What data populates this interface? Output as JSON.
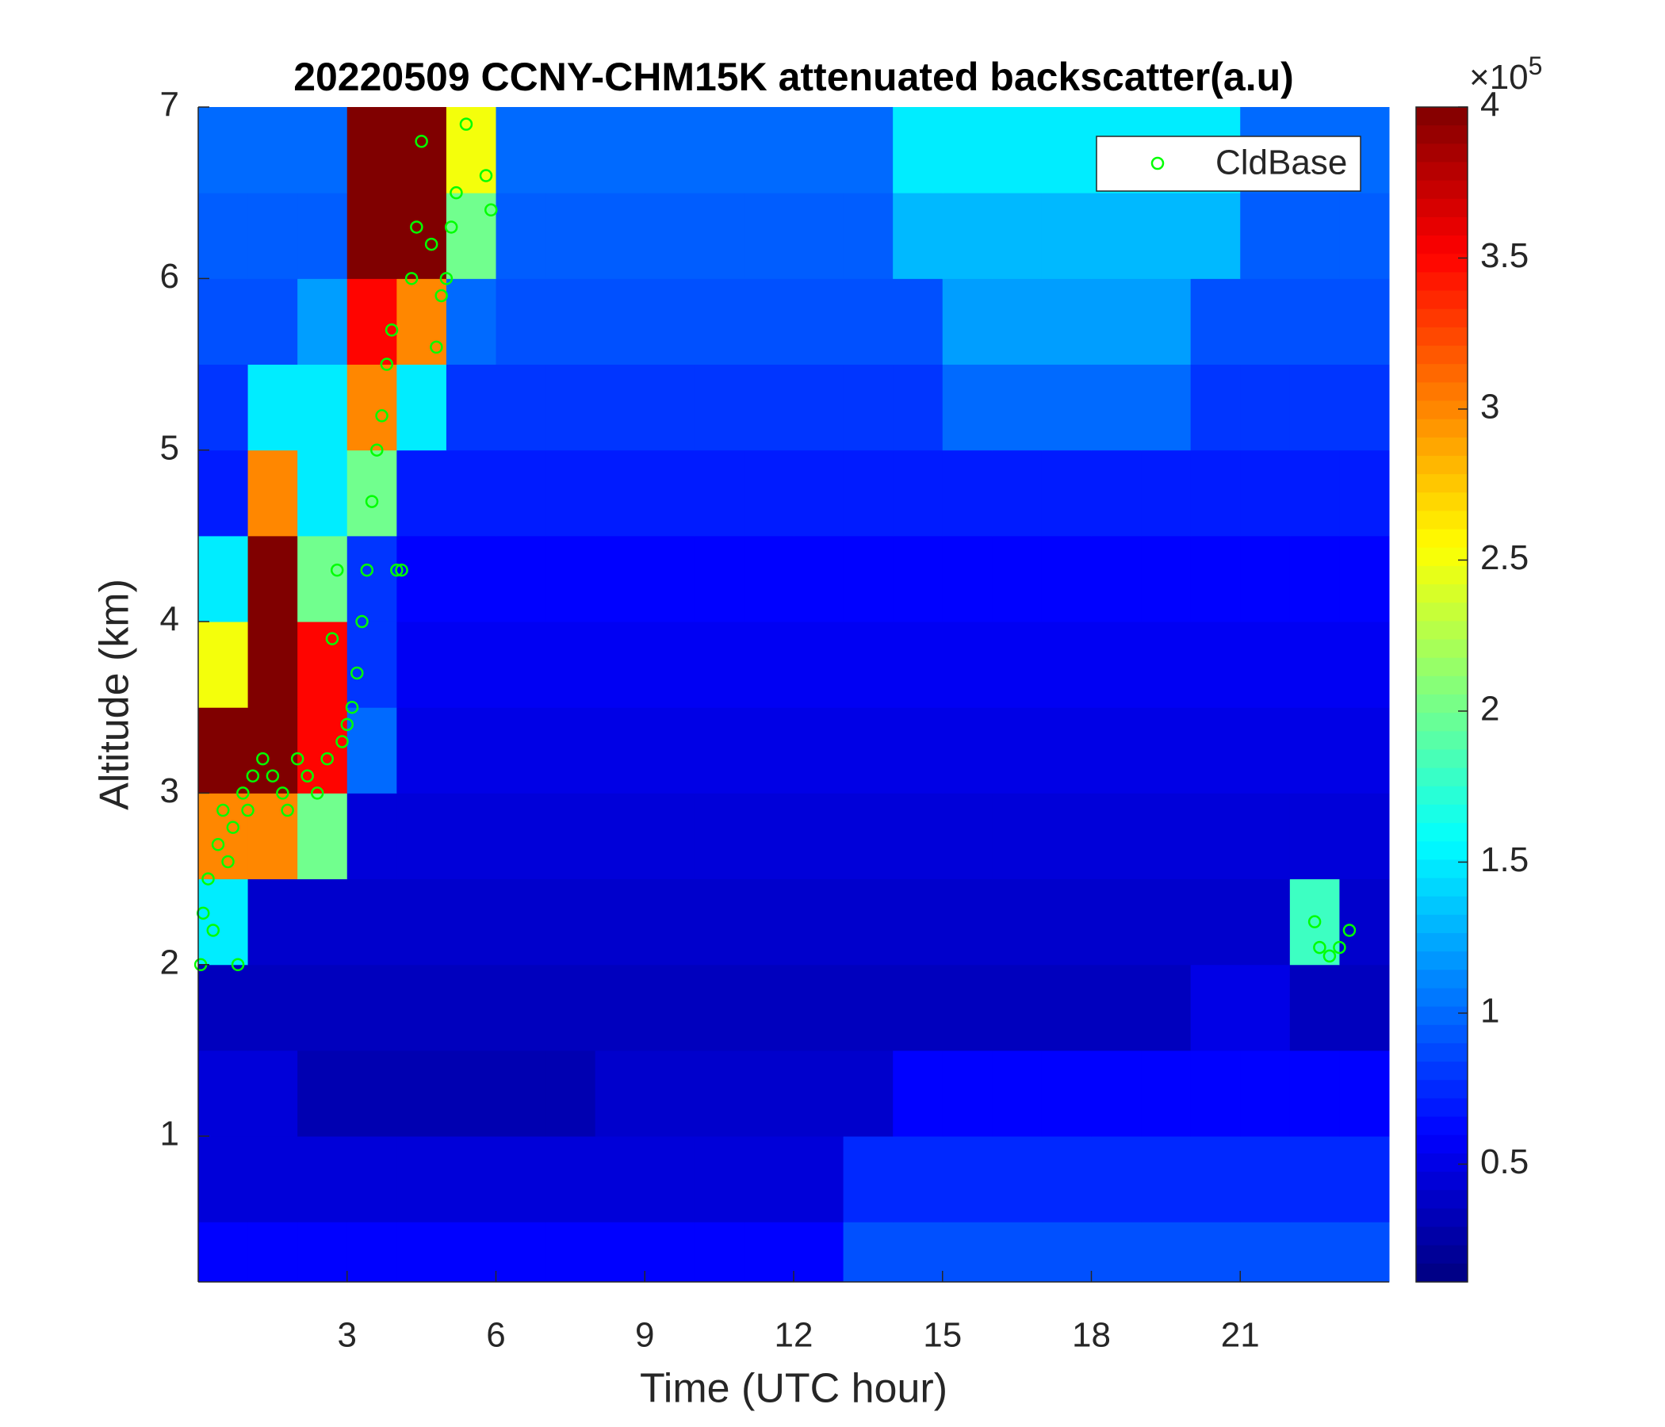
{
  "chart_data": {
    "type": "heatmap",
    "title": "20220509 CCNY-CHM15K attenuated backscatter(a.u)",
    "x_label": "Time (UTC hour)",
    "y_label": "Altitude (km)",
    "xlim": [
      0,
      24
    ],
    "ylim": [
      0.15,
      7
    ],
    "xticks": [
      3,
      6,
      9,
      12,
      15,
      18,
      21
    ],
    "yticks": [
      1,
      2,
      3,
      4,
      5,
      6,
      7
    ],
    "colormap": "jet",
    "clim": [
      0.11,
      4
    ],
    "cticks": [
      0.5,
      1,
      1.5,
      2,
      2.5,
      3,
      3.5,
      4
    ],
    "colorbar_multiplier": {
      "base": "×10",
      "exponent": "5"
    },
    "x_edges": [
      0,
      1,
      2,
      3,
      4,
      5,
      6,
      7,
      8,
      9,
      10,
      11,
      12,
      13,
      14,
      15,
      16,
      17,
      18,
      19,
      20,
      21,
      22,
      23,
      24
    ],
    "y_edges": [
      0.15,
      0.5,
      1,
      1.5,
      2,
      2.5,
      3,
      3.5,
      4,
      4.5,
      5,
      5.5,
      6,
      6.5,
      7
    ],
    "values": [
      [
        0.6,
        0.6,
        0.6,
        0.6,
        0.6,
        0.6,
        0.6,
        0.6,
        0.6,
        0.6,
        0.6,
        0.6,
        0.6,
        0.9,
        0.9,
        0.9,
        0.9,
        0.9,
        0.9,
        0.9,
        0.9,
        0.9,
        0.9,
        0.9
      ],
      [
        0.45,
        0.45,
        0.45,
        0.45,
        0.45,
        0.45,
        0.45,
        0.45,
        0.45,
        0.45,
        0.45,
        0.45,
        0.45,
        0.75,
        0.75,
        0.75,
        0.75,
        0.75,
        0.75,
        0.75,
        0.75,
        0.75,
        0.75,
        0.75
      ],
      [
        0.45,
        0.45,
        0.3,
        0.3,
        0.3,
        0.3,
        0.3,
        0.3,
        0.4,
        0.4,
        0.4,
        0.4,
        0.4,
        0.4,
        0.6,
        0.6,
        0.6,
        0.6,
        0.6,
        0.6,
        0.6,
        0.6,
        0.6,
        0.6
      ],
      [
        0.35,
        0.35,
        0.35,
        0.35,
        0.35,
        0.35,
        0.35,
        0.35,
        0.35,
        0.35,
        0.35,
        0.35,
        0.35,
        0.35,
        0.35,
        0.35,
        0.35,
        0.35,
        0.35,
        0.35,
        0.5,
        0.5,
        0.35,
        0.35
      ],
      [
        1.5,
        0.4,
        0.4,
        0.4,
        0.4,
        0.4,
        0.4,
        0.4,
        0.4,
        0.4,
        0.4,
        0.4,
        0.4,
        0.4,
        0.4,
        0.4,
        0.4,
        0.4,
        0.4,
        0.4,
        0.4,
        0.4,
        1.8,
        0.4
      ],
      [
        3.0,
        3.0,
        2.0,
        0.45,
        0.45,
        0.45,
        0.45,
        0.45,
        0.45,
        0.45,
        0.45,
        0.45,
        0.45,
        0.45,
        0.45,
        0.45,
        0.45,
        0.45,
        0.45,
        0.45,
        0.45,
        0.45,
        0.45,
        0.45
      ],
      [
        4,
        4,
        3.5,
        1.0,
        0.5,
        0.5,
        0.5,
        0.5,
        0.5,
        0.5,
        0.5,
        0.5,
        0.5,
        0.5,
        0.5,
        0.5,
        0.5,
        0.5,
        0.5,
        0.5,
        0.5,
        0.5,
        0.5,
        0.5
      ],
      [
        2.5,
        4,
        3.5,
        0.8,
        0.55,
        0.55,
        0.55,
        0.55,
        0.55,
        0.55,
        0.55,
        0.55,
        0.55,
        0.55,
        0.55,
        0.55,
        0.55,
        0.55,
        0.55,
        0.55,
        0.55,
        0.55,
        0.55,
        0.55
      ],
      [
        1.5,
        4,
        2.0,
        0.8,
        0.6,
        0.6,
        0.6,
        0.6,
        0.6,
        0.6,
        0.6,
        0.6,
        0.6,
        0.6,
        0.6,
        0.6,
        0.6,
        0.6,
        0.6,
        0.6,
        0.6,
        0.6,
        0.6,
        0.6
      ],
      [
        0.7,
        3.0,
        1.5,
        2.0,
        0.7,
        0.7,
        0.7,
        0.7,
        0.7,
        0.7,
        0.7,
        0.7,
        0.7,
        0.7,
        0.7,
        0.7,
        0.7,
        0.7,
        0.7,
        0.7,
        0.7,
        0.7,
        0.7,
        0.7
      ],
      [
        0.8,
        1.5,
        1.5,
        3.0,
        1.5,
        0.8,
        0.8,
        0.8,
        0.8,
        0.8,
        0.8,
        0.8,
        0.8,
        0.8,
        0.8,
        1.0,
        1.0,
        1.0,
        1.0,
        1.0,
        0.8,
        0.8,
        0.8,
        0.8
      ],
      [
        0.9,
        0.9,
        1.2,
        3.5,
        3.0,
        1.0,
        0.9,
        0.9,
        0.9,
        0.9,
        0.9,
        0.9,
        0.9,
        0.9,
        0.9,
        1.2,
        1.2,
        1.2,
        1.2,
        1.2,
        0.9,
        0.9,
        0.9,
        0.9
      ],
      [
        0.95,
        0.95,
        0.95,
        4,
        4,
        2.0,
        0.95,
        0.95,
        0.95,
        0.95,
        0.95,
        0.95,
        0.95,
        0.95,
        1.3,
        1.3,
        1.3,
        1.3,
        1.3,
        1.3,
        1.3,
        0.95,
        0.95,
        0.95
      ],
      [
        1.0,
        1.0,
        1.0,
        4,
        4,
        2.5,
        1.0,
        1.0,
        1.0,
        1.0,
        1.0,
        1.0,
        1.0,
        1.0,
        1.5,
        1.5,
        1.5,
        1.5,
        1.5,
        1.5,
        1.5,
        1.0,
        1.0,
        1.0
      ]
    ],
    "legend_location": "northeast",
    "series": [
      {
        "name": "CldBase",
        "color": "#00ff00",
        "marker": "circle",
        "x": [
          0.05,
          0.1,
          0.2,
          0.3,
          0.4,
          0.5,
          0.6,
          0.7,
          0.8,
          0.9,
          1.0,
          1.1,
          1.3,
          1.5,
          1.7,
          1.8,
          2.0,
          2.2,
          2.4,
          2.6,
          2.7,
          2.8,
          2.9,
          3.0,
          3.1,
          3.2,
          3.3,
          3.4,
          3.5,
          3.6,
          3.7,
          3.8,
          3.9,
          4.0,
          4.1,
          4.3,
          4.4,
          4.5,
          4.7,
          4.8,
          4.9,
          5.0,
          5.1,
          5.2,
          5.4,
          5.8,
          5.9,
          22.5,
          22.6,
          22.8,
          23.0,
          23.2
        ],
        "y": [
          2.0,
          2.3,
          2.5,
          2.2,
          2.7,
          2.9,
          2.6,
          2.8,
          2.0,
          3.0,
          2.9,
          3.1,
          3.2,
          3.1,
          3.0,
          2.9,
          3.2,
          3.1,
          3.0,
          3.2,
          3.9,
          4.3,
          3.3,
          3.4,
          3.5,
          3.7,
          4.0,
          4.3,
          4.7,
          5.0,
          5.2,
          5.5,
          5.7,
          4.3,
          4.3,
          6.0,
          6.3,
          6.8,
          6.2,
          5.6,
          5.9,
          6.0,
          6.3,
          6.5,
          6.9,
          6.6,
          6.4,
          2.25,
          2.1,
          2.05,
          2.1,
          2.2
        ]
      }
    ]
  }
}
